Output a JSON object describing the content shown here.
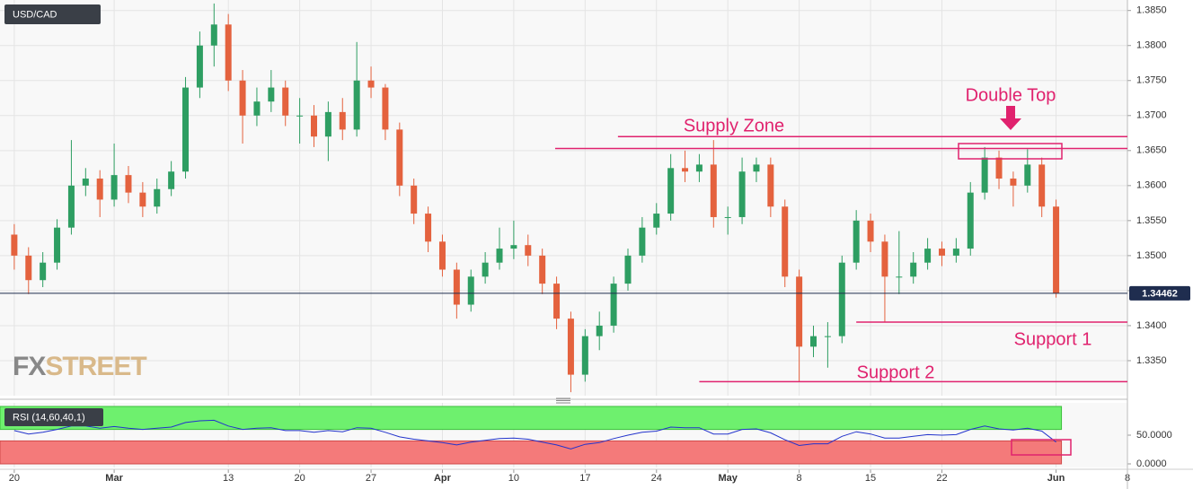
{
  "chart_data": {
    "type": "candlestick",
    "title": "USD/CAD",
    "x": [
      0,
      1,
      2,
      3,
      4,
      5,
      6,
      7,
      8,
      9,
      10,
      11,
      12,
      13,
      14,
      15,
      16,
      17,
      18,
      19,
      20,
      21,
      22,
      23,
      24,
      25,
      26,
      27,
      28,
      29,
      30,
      31,
      32,
      33,
      34,
      35,
      36,
      37,
      38,
      39,
      40,
      41,
      42,
      43,
      44,
      45,
      46,
      47,
      48,
      49,
      50,
      51,
      52,
      53,
      54,
      55,
      56,
      57,
      58,
      59,
      60,
      61,
      62,
      63,
      64,
      65,
      66,
      67,
      68,
      69,
      70,
      71,
      72,
      73
    ],
    "open": [
      1.353,
      1.35,
      1.3465,
      1.349,
      1.354,
      1.36,
      1.361,
      1.358,
      1.3615,
      1.359,
      1.357,
      1.3595,
      1.362,
      1.374,
      1.38,
      1.383,
      1.375,
      1.37,
      1.372,
      1.374,
      1.37,
      1.37,
      1.367,
      1.3705,
      1.368,
      1.375,
      1.374,
      1.368,
      1.36,
      1.356,
      1.352,
      1.348,
      1.343,
      1.347,
      1.349,
      1.351,
      1.3515,
      1.35,
      1.346,
      1.341,
      1.333,
      1.3385,
      1.34,
      1.346,
      1.35,
      1.354,
      1.356,
      1.3625,
      1.362,
      1.363,
      1.3555,
      1.3555,
      1.362,
      1.363,
      1.357,
      1.347,
      1.337,
      1.3385,
      1.3385,
      1.349,
      1.355,
      1.352,
      1.347,
      1.347,
      1.349,
      1.351,
      1.35,
      1.351,
      1.359,
      1.364,
      1.361,
      1.36,
      1.363,
      1.357
    ],
    "high": [
      1.3545,
      1.3512,
      1.3505,
      1.3552,
      1.3665,
      1.3625,
      1.3622,
      1.366,
      1.3628,
      1.3605,
      1.361,
      1.3635,
      1.3755,
      1.382,
      1.386,
      1.3845,
      1.3765,
      1.374,
      1.3765,
      1.375,
      1.3725,
      1.3715,
      1.372,
      1.3725,
      1.3805,
      1.377,
      1.3745,
      1.369,
      1.361,
      1.357,
      1.353,
      1.349,
      1.348,
      1.3505,
      1.354,
      1.355,
      1.353,
      1.351,
      1.347,
      1.342,
      1.3395,
      1.342,
      1.347,
      1.351,
      1.3555,
      1.3575,
      1.3645,
      1.365,
      1.3645,
      1.3665,
      1.357,
      1.364,
      1.364,
      1.364,
      1.358,
      1.348,
      1.34,
      1.3405,
      1.35,
      1.3565,
      1.356,
      1.353,
      1.3535,
      1.3505,
      1.3525,
      1.352,
      1.3525,
      1.3605,
      1.3655,
      1.365,
      1.362,
      1.3652,
      1.364,
      1.358
    ],
    "low": [
      1.348,
      1.3445,
      1.3455,
      1.348,
      1.353,
      1.3585,
      1.3555,
      1.357,
      1.3575,
      1.3555,
      1.356,
      1.3585,
      1.361,
      1.3725,
      1.377,
      1.3735,
      1.366,
      1.3685,
      1.3705,
      1.3685,
      1.366,
      1.3655,
      1.3635,
      1.3665,
      1.367,
      1.3725,
      1.3665,
      1.3585,
      1.3545,
      1.3505,
      1.347,
      1.341,
      1.342,
      1.346,
      1.348,
      1.3495,
      1.3485,
      1.3445,
      1.3395,
      1.3305,
      1.332,
      1.3365,
      1.339,
      1.345,
      1.349,
      1.353,
      1.355,
      1.3605,
      1.3605,
      1.354,
      1.353,
      1.3545,
      1.3605,
      1.3555,
      1.3455,
      1.332,
      1.3355,
      1.334,
      1.3375,
      1.348,
      1.3505,
      1.3405,
      1.3445,
      1.346,
      1.348,
      1.3485,
      1.349,
      1.35,
      1.358,
      1.3595,
      1.357,
      1.359,
      1.3555,
      1.344
    ],
    "close": [
      1.35,
      1.3465,
      1.349,
      1.354,
      1.36,
      1.361,
      1.358,
      1.3615,
      1.359,
      1.357,
      1.3595,
      1.362,
      1.374,
      1.38,
      1.383,
      1.375,
      1.37,
      1.372,
      1.374,
      1.37,
      1.37,
      1.367,
      1.3705,
      1.368,
      1.375,
      1.374,
      1.368,
      1.36,
      1.356,
      1.352,
      1.348,
      1.343,
      1.347,
      1.349,
      1.351,
      1.3515,
      1.35,
      1.346,
      1.341,
      1.333,
      1.3385,
      1.34,
      1.346,
      1.35,
      1.354,
      1.356,
      1.3625,
      1.362,
      1.363,
      1.3555,
      1.3555,
      1.362,
      1.363,
      1.357,
      1.347,
      1.337,
      1.3385,
      1.3385,
      1.349,
      1.355,
      1.352,
      1.347,
      1.347,
      1.349,
      1.351,
      1.35,
      1.351,
      1.359,
      1.364,
      1.361,
      1.36,
      1.363,
      1.357,
      1.3446
    ],
    "up_color": "#2e9e62",
    "down_color": "#e4623e",
    "xlim": [
      -1,
      78
    ],
    "xticks": [
      {
        "value": 0,
        "label": "20"
      },
      {
        "value": 7,
        "label": "Mar"
      },
      {
        "value": 15,
        "label": "13"
      },
      {
        "value": 20,
        "label": "20"
      },
      {
        "value": 25,
        "label": "27"
      },
      {
        "value": 30,
        "label": "Apr"
      },
      {
        "value": 35,
        "label": "10"
      },
      {
        "value": 40,
        "label": "17"
      },
      {
        "value": 45,
        "label": "24"
      },
      {
        "value": 50,
        "label": "May"
      },
      {
        "value": 55,
        "label": "8"
      },
      {
        "value": 60,
        "label": "15"
      },
      {
        "value": 65,
        "label": "22"
      },
      {
        "value": 73,
        "label": "Jun"
      },
      {
        "value": 78,
        "label": "8"
      }
    ],
    "ylim": [
      1.33,
      1.3865
    ],
    "yticks": [
      {
        "value": 1.335,
        "label": "1.3350"
      },
      {
        "value": 1.34,
        "label": "1.3400"
      },
      {
        "value": 1.345,
        "label": "1.3450"
      },
      {
        "value": 1.35,
        "label": "1.3500"
      },
      {
        "value": 1.355,
        "label": "1.3550"
      },
      {
        "value": 1.36,
        "label": "1.3600"
      },
      {
        "value": 1.365,
        "label": "1.3650"
      },
      {
        "value": 1.37,
        "label": "1.3700"
      },
      {
        "value": 1.375,
        "label": "1.3750"
      },
      {
        "value": 1.38,
        "label": "1.3800"
      },
      {
        "value": 1.385,
        "label": "1.3850"
      }
    ],
    "grid": true,
    "last_price": 1.34462,
    "last_price_color": "#1f2d4f",
    "levels": [
      {
        "name": "Supply Zone",
        "value": 1.367,
        "from": 42.3
      },
      {
        "value": 1.3653,
        "from": 37.9
      },
      {
        "name": "Support 1",
        "value": 1.3405,
        "from": 59
      },
      {
        "name": "Support 2",
        "value": 1.332,
        "from": 48
      }
    ],
    "level_color": "#e0226e",
    "annotation": "Double Top",
    "logo": [
      "FX",
      "STREET"
    ],
    "rsi": {
      "label": "RSI (14,60,40,1)",
      "upper": 60,
      "lower": 40,
      "ylim": [
        0,
        100
      ],
      "yticks": [
        {
          "value": 50,
          "label": "50.0000"
        },
        {
          "value": 0,
          "label": "0.0000"
        }
      ],
      "color": "#2233cc",
      "values": [
        58,
        52,
        55,
        60,
        66,
        66,
        62,
        65,
        62,
        60,
        62,
        64,
        72,
        75,
        76,
        66,
        60,
        62,
        63,
        58,
        58,
        55,
        58,
        56,
        63,
        62,
        55,
        47,
        43,
        40,
        37,
        33,
        38,
        41,
        44,
        45,
        43,
        38,
        33,
        26,
        34,
        37,
        44,
        50,
        55,
        57,
        64,
        63,
        63,
        52,
        52,
        60,
        61,
        54,
        42,
        32,
        35,
        35,
        48,
        56,
        52,
        45,
        45,
        48,
        51,
        50,
        51,
        60,
        66,
        61,
        59,
        62,
        57,
        38
      ]
    }
  }
}
